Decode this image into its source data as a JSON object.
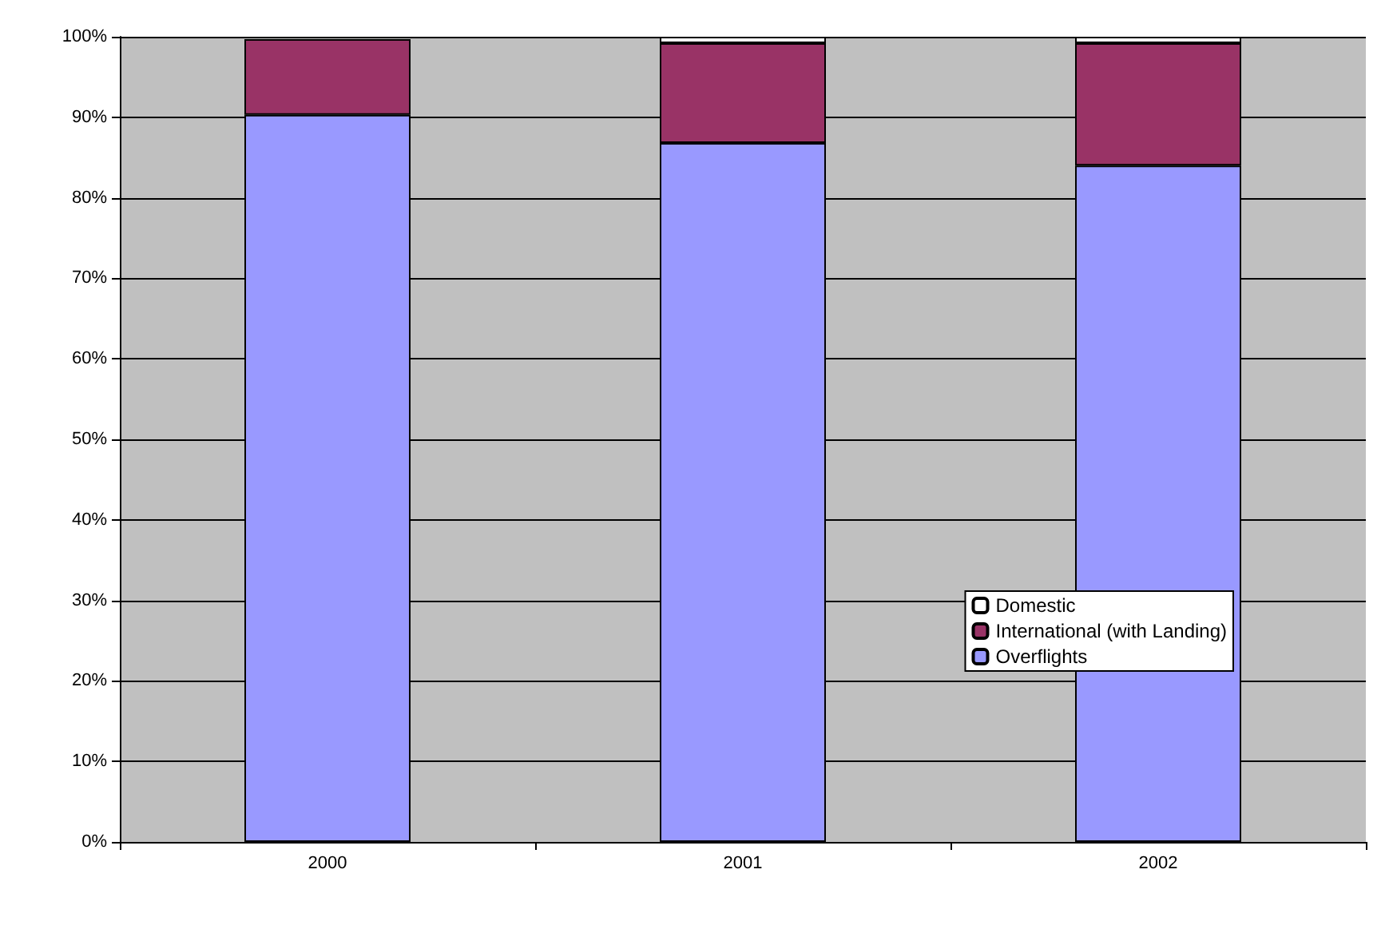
{
  "chart_data": {
    "type": "bar",
    "stacked": true,
    "categories": [
      "2000",
      "2001",
      "2002"
    ],
    "series": [
      {
        "name": "Overflights",
        "color": "#9999ff",
        "values": [
          90.3,
          86.8,
          84.0
        ]
      },
      {
        "name": "International (with Landing)",
        "color": "#993366",
        "values": [
          9.4,
          12.4,
          15.2
        ]
      },
      {
        "name": "Domestic",
        "color": "#ffffff",
        "values": [
          null,
          0.8,
          0.8
        ]
      }
    ],
    "ylim": [
      0,
      100
    ],
    "yticks": [
      {
        "value": 0,
        "label": "0%"
      },
      {
        "value": 10,
        "label": "10%"
      },
      {
        "value": 20,
        "label": "20%"
      },
      {
        "value": 30,
        "label": "30%"
      },
      {
        "value": 40,
        "label": "40%"
      },
      {
        "value": 50,
        "label": "50%"
      },
      {
        "value": 60,
        "label": "60%"
      },
      {
        "value": 70,
        "label": "70%"
      },
      {
        "value": 80,
        "label": "80%"
      },
      {
        "value": 90,
        "label": "90%"
      },
      {
        "value": 100,
        "label": "100%"
      }
    ],
    "grid": "y",
    "legend": "right"
  }
}
